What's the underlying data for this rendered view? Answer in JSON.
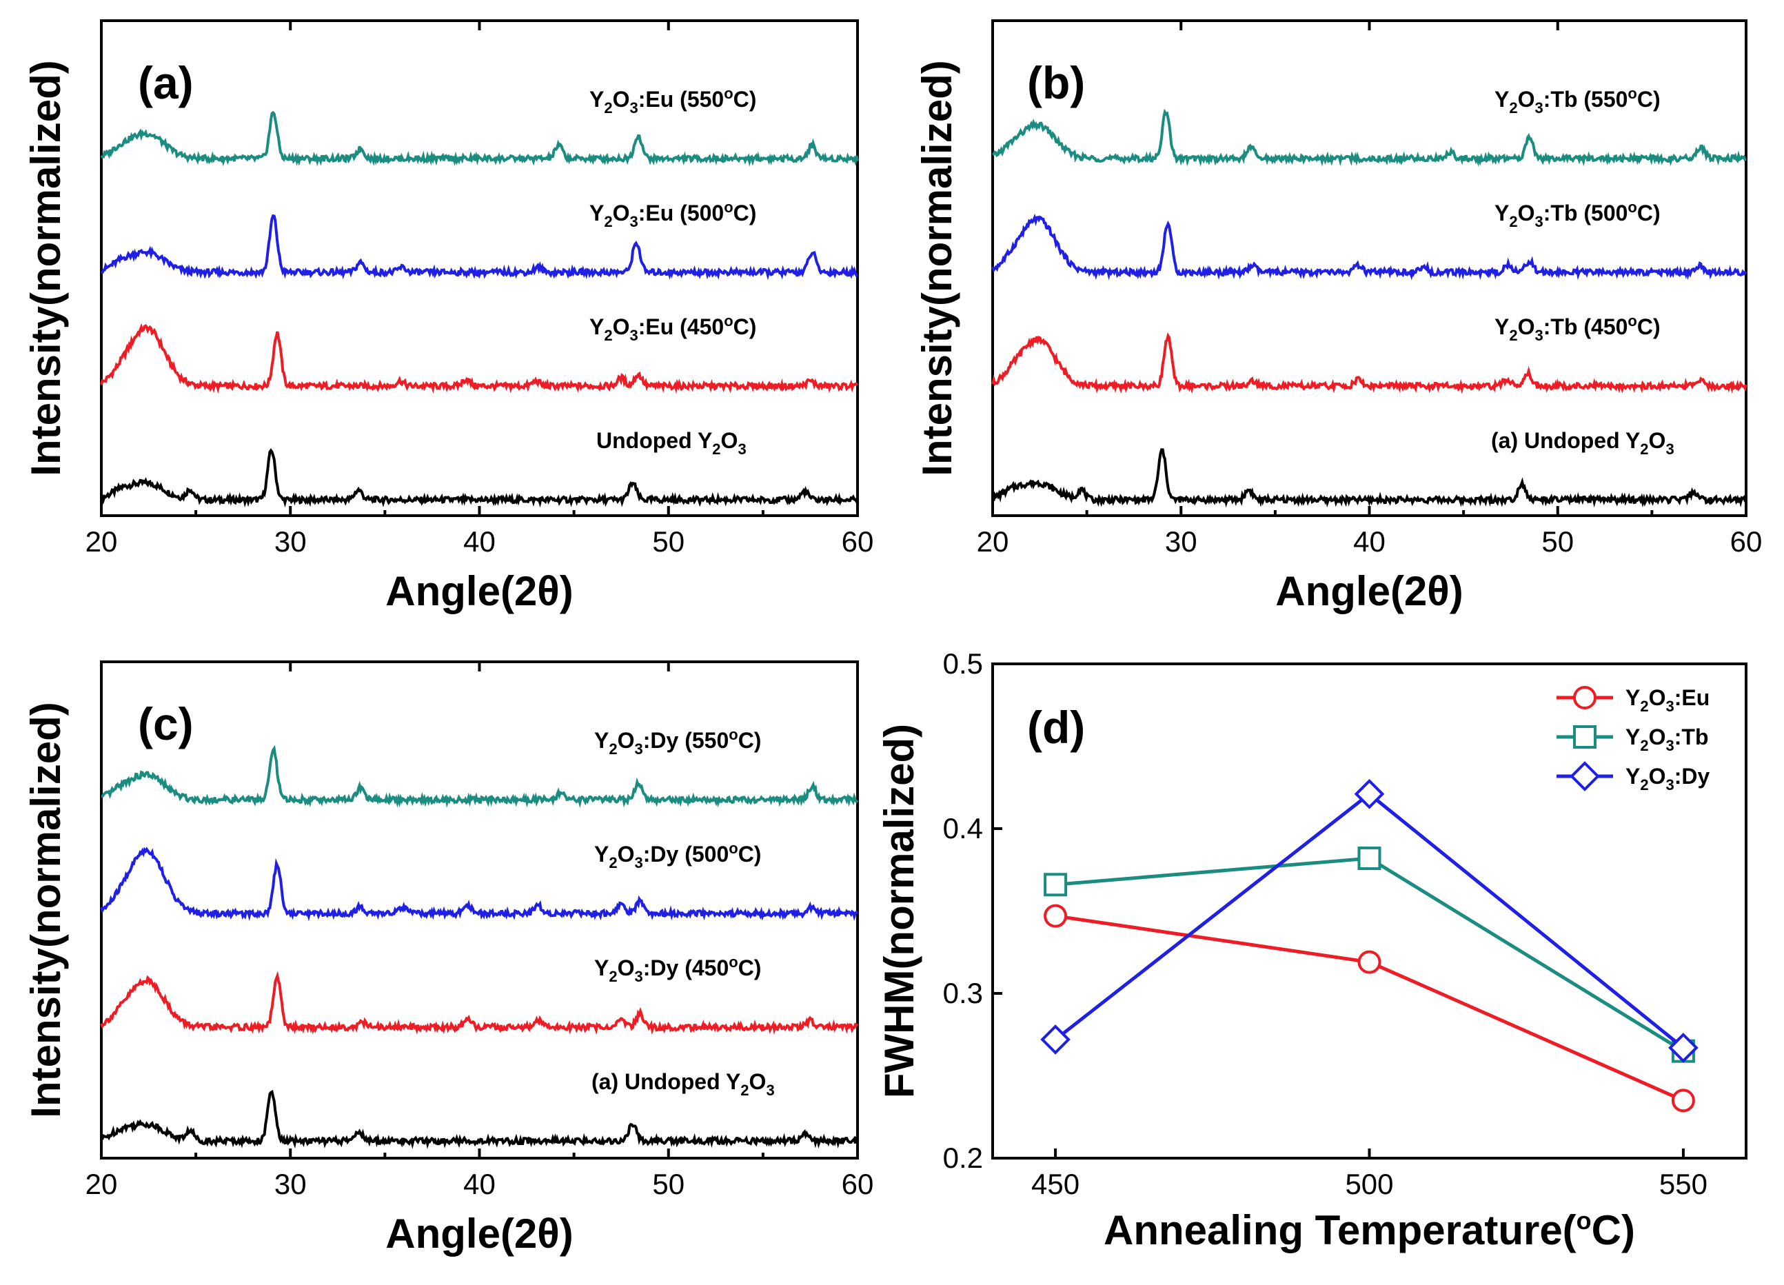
{
  "colors": {
    "undoped": "#000000",
    "c450": "#ee1c24",
    "c500": "#1f1fe6",
    "c550": "#1a8c80",
    "eu": "#ee1c24",
    "tb": "#1a8c80",
    "dy": "#1f1fe6"
  },
  "chart_data": [
    {
      "id": "a",
      "type": "line",
      "panel_label": "(a)",
      "xlabel": "Angle(2θ)",
      "ylabel": "Intensity(normalized)",
      "xlim": [
        20,
        60
      ],
      "xticks": [
        20,
        30,
        40,
        50,
        60
      ],
      "series": [
        {
          "name": "Undoped Y₂O₃",
          "label": {
            "pre": "Undoped Y",
            "sub1": "2",
            "mid": "O",
            "sub2": "3",
            "post": ""
          },
          "color_key": "undoped",
          "offset": 0,
          "broad_hump": 0.1,
          "peaks": [
            [
              24.7,
              0.06
            ],
            [
              29.0,
              0.3
            ],
            [
              33.6,
              0.06
            ],
            [
              48.1,
              0.1
            ],
            [
              57.2,
              0.05
            ]
          ]
        },
        {
          "name": "Y₂O₃:Eu (450°C)",
          "label": {
            "pre": "Y",
            "sub1": "2",
            "mid": "O",
            "sub2": "3",
            "post": ":Eu (450",
            "deg": "o",
            "tail": "C)"
          },
          "color_key": "c450",
          "offset": 1,
          "broad_hump": 0.35,
          "peaks": [
            [
              29.3,
              0.32
            ],
            [
              35.8,
              0.03
            ],
            [
              39.3,
              0.04
            ],
            [
              43.0,
              0.03
            ],
            [
              47.5,
              0.05
            ],
            [
              48.4,
              0.07
            ],
            [
              57.5,
              0.03
            ]
          ]
        },
        {
          "name": "Y₂O₃:Eu (500°C)",
          "label": {
            "pre": "Y",
            "sub1": "2",
            "mid": "O",
            "sub2": "3",
            "post": ":Eu (500",
            "deg": "o",
            "tail": "C)"
          },
          "color_key": "c500",
          "offset": 2,
          "broad_hump": 0.12,
          "peaks": [
            [
              29.1,
              0.34
            ],
            [
              33.7,
              0.06
            ],
            [
              35.9,
              0.03
            ],
            [
              43.1,
              0.03
            ],
            [
              48.3,
              0.18
            ],
            [
              57.6,
              0.12
            ]
          ]
        },
        {
          "name": "Y₂O₃:Eu (550°C)",
          "label": {
            "pre": "Y",
            "sub1": "2",
            "mid": "O",
            "sub2": "3",
            "post": ":Eu (550",
            "deg": "o",
            "tail": "C)"
          },
          "color_key": "c550",
          "offset": 3,
          "broad_hump": 0.15,
          "peaks": [
            [
              29.1,
              0.28
            ],
            [
              33.7,
              0.06
            ],
            [
              44.2,
              0.08
            ],
            [
              48.4,
              0.14
            ],
            [
              57.6,
              0.08
            ]
          ]
        }
      ]
    },
    {
      "id": "b",
      "type": "line",
      "panel_label": "(b)",
      "xlabel": "Angle(2θ)",
      "ylabel": "Intensity(normalized)",
      "xlim": [
        20,
        60
      ],
      "xticks": [
        20,
        30,
        40,
        50,
        60
      ],
      "series": [
        {
          "name": "(a) Undoped Y₂O₃",
          "label": {
            "pre": "(a) Undoped Y",
            "sub1": "2",
            "mid": "O",
            "sub2": "3",
            "post": ""
          },
          "color_key": "undoped",
          "offset": 0,
          "broad_hump": 0.1,
          "peaks": [
            [
              24.7,
              0.06
            ],
            [
              29.0,
              0.3
            ],
            [
              33.6,
              0.06
            ],
            [
              48.1,
              0.1
            ],
            [
              57.2,
              0.05
            ]
          ]
        },
        {
          "name": "Y₂O₃:Tb (450°C)",
          "label": {
            "pre": "Y",
            "sub1": "2",
            "mid": "O",
            "sub2": "3",
            "post": ":Tb (450",
            "deg": "o",
            "tail": "C)"
          },
          "color_key": "c450",
          "offset": 1,
          "broad_hump": 0.28,
          "peaks": [
            [
              29.3,
              0.3
            ],
            [
              33.8,
              0.03
            ],
            [
              39.4,
              0.04
            ],
            [
              47.3,
              0.04
            ],
            [
              48.4,
              0.08
            ],
            [
              57.6,
              0.03
            ]
          ]
        },
        {
          "name": "Y₂O₃:Tb (500°C)",
          "label": {
            "pre": "Y",
            "sub1": "2",
            "mid": "O",
            "sub2": "3",
            "post": ":Tb (500",
            "deg": "o",
            "tail": "C)"
          },
          "color_key": "c500",
          "offset": 2,
          "broad_hump": 0.32,
          "peaks": [
            [
              29.3,
              0.3
            ],
            [
              33.8,
              0.04
            ],
            [
              39.4,
              0.04
            ],
            [
              42.9,
              0.03
            ],
            [
              47.4,
              0.05
            ],
            [
              48.5,
              0.07
            ],
            [
              57.5,
              0.04
            ]
          ]
        },
        {
          "name": "Y₂O₃:Tb (550°C)",
          "label": {
            "pre": "Y",
            "sub1": "2",
            "mid": "O",
            "sub2": "3",
            "post": ":Tb (550",
            "deg": "o",
            "tail": "C)"
          },
          "color_key": "c550",
          "offset": 3,
          "broad_hump": 0.2,
          "peaks": [
            [
              29.2,
              0.28
            ],
            [
              33.7,
              0.07
            ],
            [
              44.3,
              0.04
            ],
            [
              48.5,
              0.13
            ],
            [
              57.6,
              0.07
            ]
          ]
        }
      ]
    },
    {
      "id": "c",
      "type": "line",
      "panel_label": "(c)",
      "xlabel": "Angle(2θ)",
      "ylabel": "Intensity(normalized)",
      "xlim": [
        20,
        60
      ],
      "xticks": [
        20,
        30,
        40,
        50,
        60
      ],
      "series": [
        {
          "name": "(a) Undoped Y₂O₃",
          "label": {
            "pre": "(a) Undoped Y",
            "sub1": "2",
            "mid": "O",
            "sub2": "3",
            "post": ""
          },
          "color_key": "undoped",
          "offset": 0,
          "broad_hump": 0.1,
          "peaks": [
            [
              24.7,
              0.06
            ],
            [
              29.0,
              0.3
            ],
            [
              33.6,
              0.06
            ],
            [
              48.1,
              0.1
            ],
            [
              57.2,
              0.05
            ]
          ]
        },
        {
          "name": "Y₂O₃:Dy (450°C)",
          "label": {
            "pre": "Y",
            "sub1": "2",
            "mid": "O",
            "sub2": "3",
            "post": ":Dy (450",
            "deg": "o",
            "tail": "C)"
          },
          "color_key": "c450",
          "offset": 1,
          "broad_hump": 0.28,
          "peaks": [
            [
              29.3,
              0.3
            ],
            [
              33.8,
              0.03
            ],
            [
              39.4,
              0.04
            ],
            [
              43.1,
              0.04
            ],
            [
              47.5,
              0.05
            ],
            [
              48.5,
              0.08
            ],
            [
              57.5,
              0.04
            ]
          ]
        },
        {
          "name": "Y₂O₃:Dy (500°C)",
          "label": {
            "pre": "Y",
            "sub1": "2",
            "mid": "O",
            "sub2": "3",
            "post": ":Dy (500",
            "deg": "o",
            "tail": "C)"
          },
          "color_key": "c500",
          "offset": 2,
          "broad_hump": 0.38,
          "peaks": [
            [
              29.3,
              0.3
            ],
            [
              33.7,
              0.04
            ],
            [
              35.9,
              0.04
            ],
            [
              39.4,
              0.05
            ],
            [
              43.1,
              0.05
            ],
            [
              47.5,
              0.06
            ],
            [
              48.5,
              0.08
            ],
            [
              57.6,
              0.04
            ]
          ]
        },
        {
          "name": "Y₂O₃:Dy (550°C)",
          "label": {
            "pre": "Y",
            "sub1": "2",
            "mid": "O",
            "sub2": "3",
            "post": ":Dy (550",
            "deg": "o",
            "tail": "C)"
          },
          "color_key": "c550",
          "offset": 3,
          "broad_hump": 0.15,
          "peaks": [
            [
              29.1,
              0.3
            ],
            [
              33.7,
              0.07
            ],
            [
              44.3,
              0.04
            ],
            [
              48.4,
              0.1
            ],
            [
              57.6,
              0.08
            ]
          ]
        }
      ]
    },
    {
      "id": "d",
      "type": "line",
      "panel_label": "(d)",
      "xlabel": "Annealing Temperature(°C)",
      "xlabel_parts": {
        "pre": "Annealing Temperature(",
        "deg": "o",
        "post": "C)"
      },
      "ylabel": "FWHM(normalized)",
      "xlim": [
        440,
        560
      ],
      "ylim": [
        0.2,
        0.5
      ],
      "xticks": [
        450,
        500,
        550
      ],
      "yticks": [
        0.2,
        0.3,
        0.4,
        0.5
      ],
      "ytick_labels": [
        "0.2",
        "0.3",
        "0.4",
        "0.5"
      ],
      "x": [
        450,
        500,
        550
      ],
      "series": [
        {
          "name": "Y₂O₃:Eu",
          "label": {
            "pre": "Y",
            "sub1": "2",
            "mid": "O",
            "sub2": "3",
            "post": ":Eu"
          },
          "color_key": "eu",
          "marker": "circle",
          "values": [
            0.347,
            0.319,
            0.235
          ]
        },
        {
          "name": "Y₂O₃:Tb",
          "label": {
            "pre": "Y",
            "sub1": "2",
            "mid": "O",
            "sub2": "3",
            "post": ":Tb"
          },
          "color_key": "tb",
          "marker": "square",
          "values": [
            0.366,
            0.382,
            0.265
          ]
        },
        {
          "name": "Y₂O₃:Dy",
          "label": {
            "pre": "Y",
            "sub1": "2",
            "mid": "O",
            "sub2": "3",
            "post": ":Dy"
          },
          "color_key": "dy",
          "marker": "diamond",
          "values": [
            0.272,
            0.421,
            0.267
          ]
        }
      ],
      "legend_position": "top-right"
    }
  ]
}
